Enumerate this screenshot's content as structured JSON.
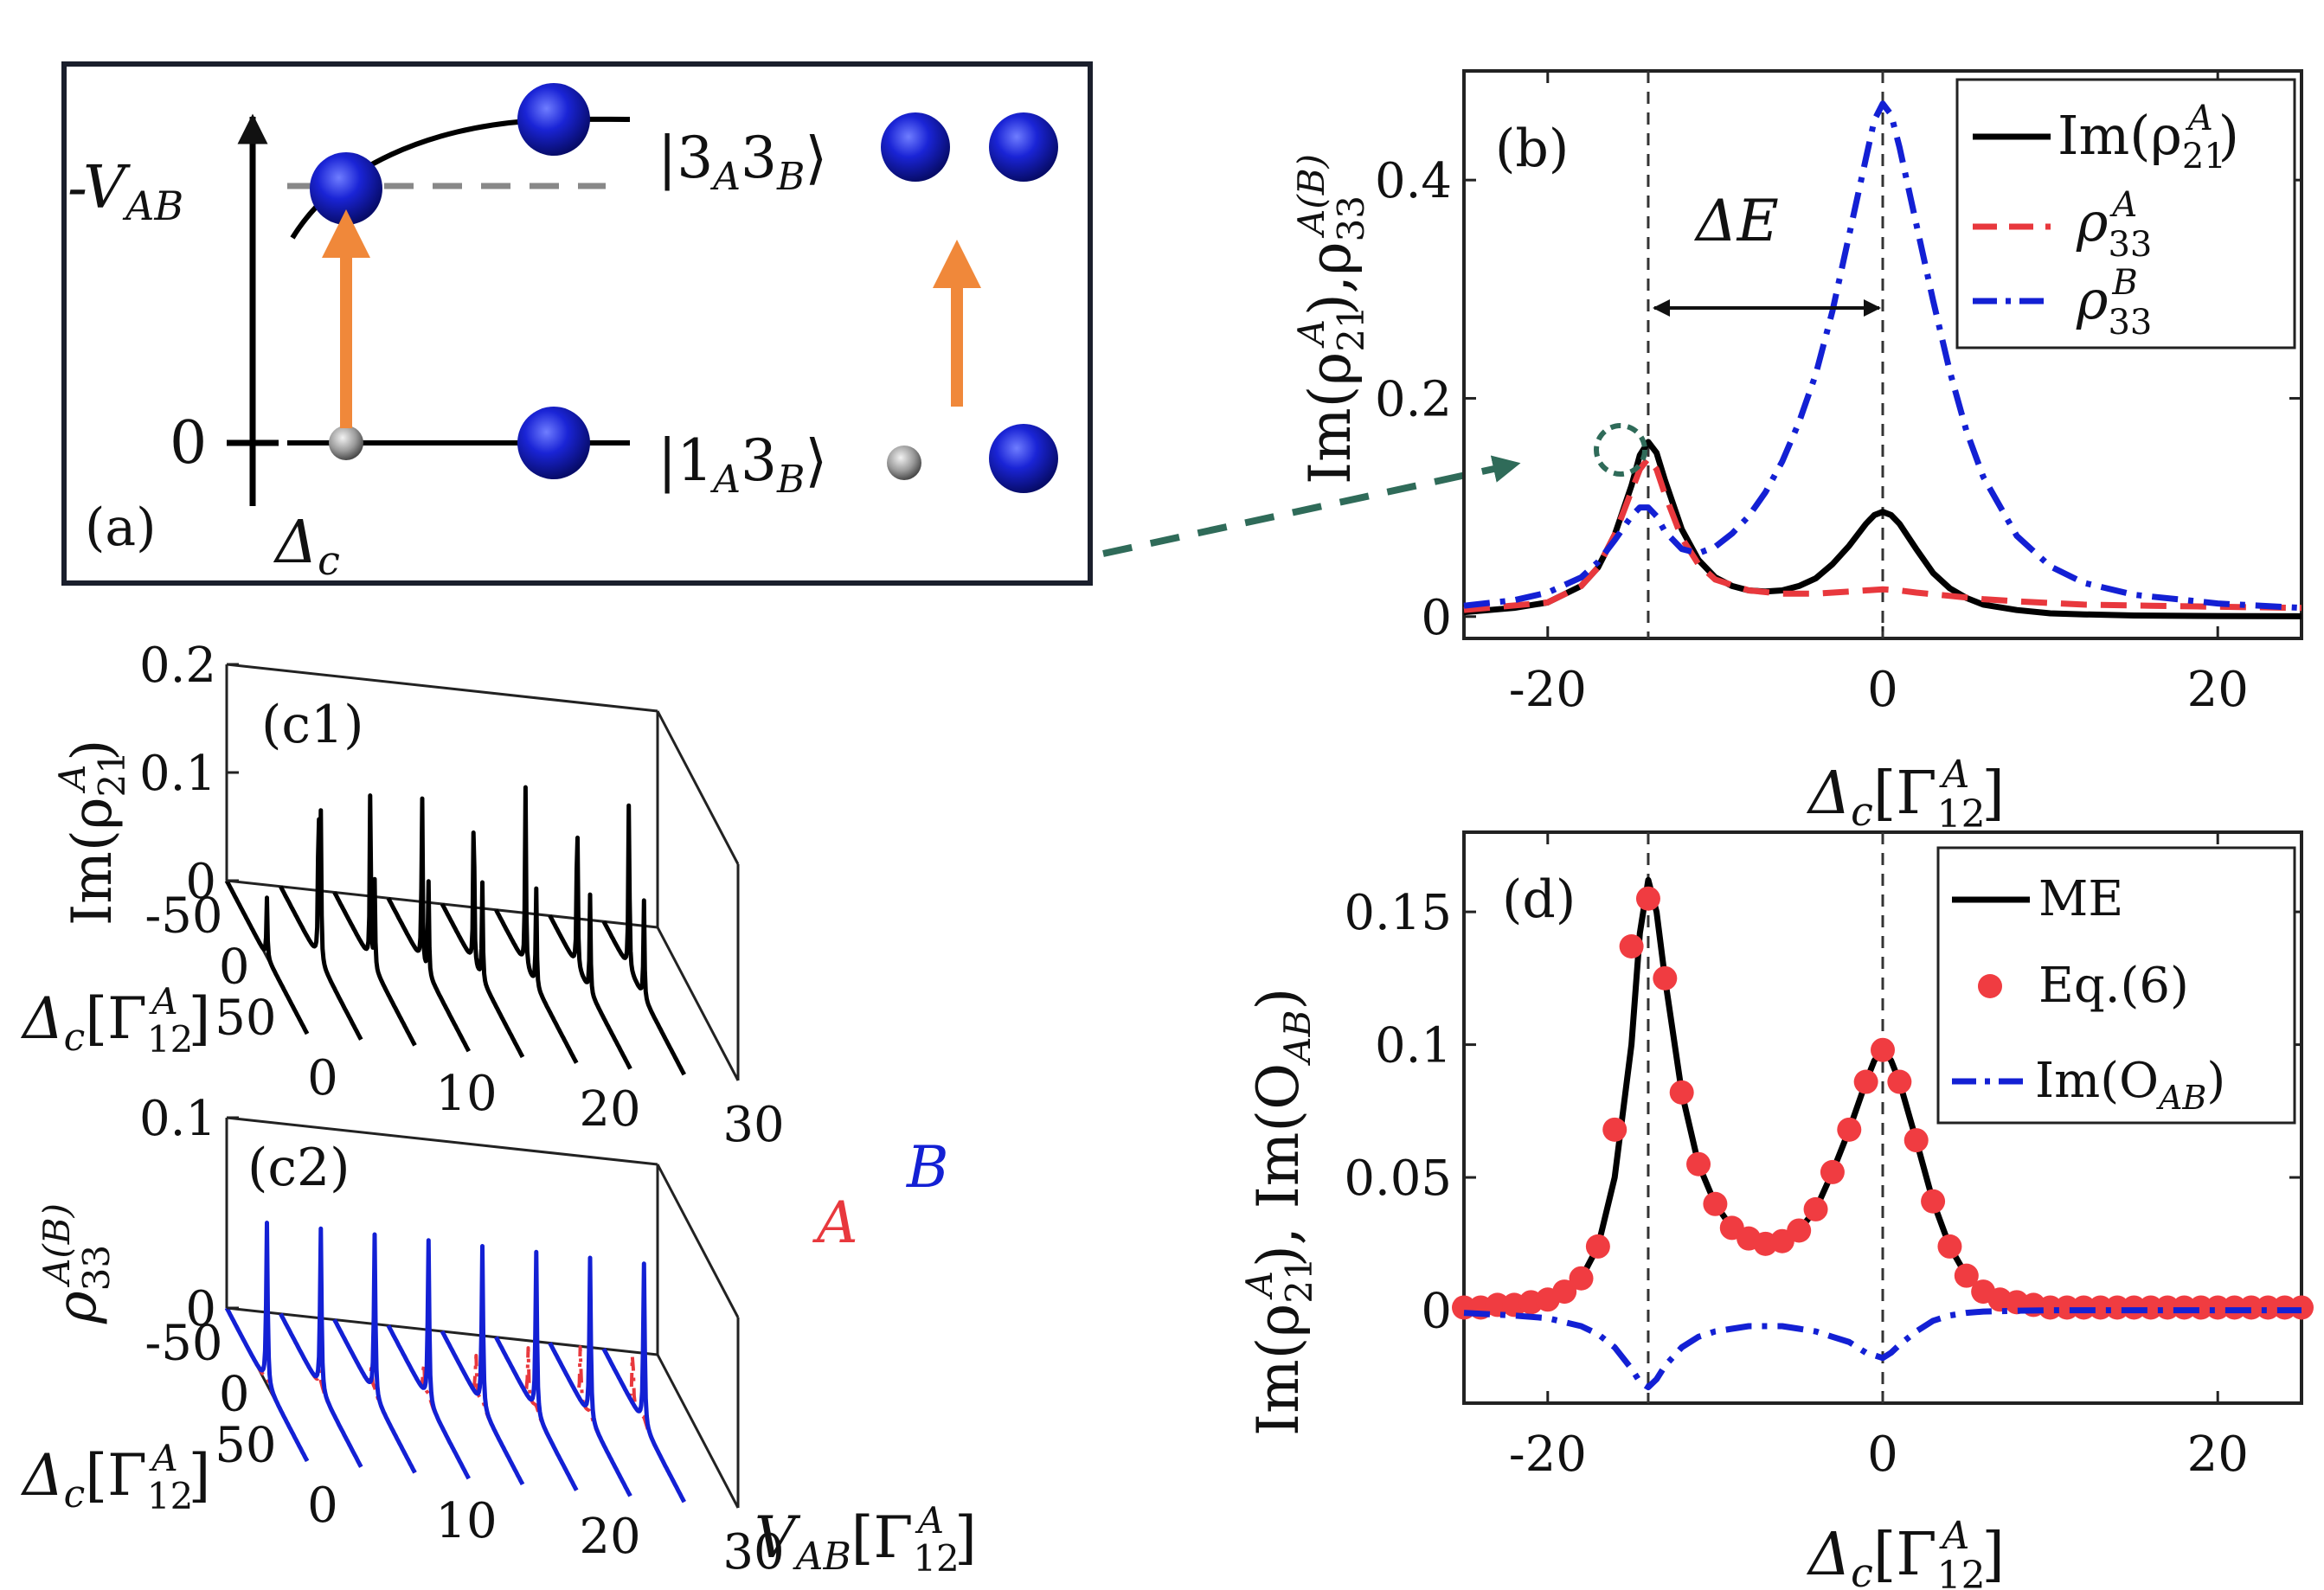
{
  "panel_labels": {
    "a": "(a)",
    "b": "(b)",
    "c1": "(c1)",
    "c2": "(c2)",
    "d": "(d)"
  },
  "panel_a": {
    "level_top": "-V",
    "level_top_sub": "AB",
    "level_bottom": "0",
    "axis_label": "Δ",
    "axis_label_sub": "c",
    "state_top": "|3",
    "state_top_sub1": "A",
    "state_top_mid": "3",
    "state_top_sub2": "B",
    "state_top_close": "⟩",
    "state_bottom": "|1",
    "state_bottom_sub1": "A",
    "state_bottom_mid": "3",
    "state_bottom_sub2": "B",
    "state_bottom_close": "⟩",
    "colors": {
      "atom_excited": "#1a24d6",
      "atom_ground": "#8a8a8a",
      "arrow": "#f0883a",
      "dash": "#888888"
    }
  },
  "labels_b": {
    "delta_e": "ΔE",
    "ylabel_main": "Im(ρ",
    "ylabel_sub": "21",
    "ylabel_sup": "A",
    "ylabel_rest": "),ρ",
    "ylabel_sub2": "33",
    "ylabel_sup2": "A(B)",
    "xlabel_main": "Δ",
    "xlabel_sub": "c",
    "xlabel_bracket": "[Γ",
    "xlabel_sub2": "12",
    "xlabel_sup2": "A",
    "xlabel_close": "]",
    "legend": [
      {
        "text": "Im(ρ",
        "sub": "21",
        "sup": "A",
        "close": ")"
      },
      {
        "text": "ρ",
        "sub": "33",
        "sup": "A",
        "close": ""
      },
      {
        "text": "ρ",
        "sub": "33",
        "sup": "B",
        "close": ""
      }
    ]
  },
  "labels_c1": {
    "zlabel_main": "Im(ρ",
    "zlabel_sub": "21",
    "zlabel_sup": "A",
    "zlabel_close": ")",
    "dlabel_main": "Δ",
    "dlabel_sub": "c",
    "dlabel_bracket": "[Γ",
    "dlabel_sub2": "12",
    "dlabel_sup2": "A",
    "dlabel_close": "]"
  },
  "labels_c2": {
    "zlabel_main": "ρ",
    "zlabel_sub": "33",
    "zlabel_sup": "A(B)",
    "tag_a": "A",
    "tag_b": "B",
    "dlabel_main": "Δ",
    "dlabel_sub": "c",
    "dlabel_bracket": "[Γ",
    "dlabel_sub2": "12",
    "dlabel_sup2": "A",
    "dlabel_close": "]",
    "vlabel_main": "V",
    "vlabel_sub": "AB",
    "vlabel_bracket": "[Γ",
    "vlabel_sub2": "12",
    "vlabel_sup2": "A",
    "vlabel_close": "]"
  },
  "labels_d": {
    "ylabel_main": "Im(ρ",
    "ylabel_sub": "21",
    "ylabel_sup": "A",
    "ylabel_rest": "), Im(O",
    "ylabel_sub2": "AB",
    "ylabel_close": ")",
    "xlabel_main": "Δ",
    "xlabel_sub": "c",
    "xlabel_bracket": "[Γ",
    "xlabel_sub2": "12",
    "xlabel_sup2": "A",
    "xlabel_close": "]",
    "legend": [
      {
        "text": "ME",
        "sub": "",
        "close": ""
      },
      {
        "text": "Eq.(6)",
        "sub": "",
        "close": ""
      },
      {
        "text": "Im(O",
        "sub": "AB",
        "close": ")"
      }
    ]
  },
  "chart_data": [
    {
      "id": "b",
      "type": "line",
      "xlim": [
        -25,
        25
      ],
      "ylim": [
        -0.02,
        0.5
      ],
      "xticks": [
        -20,
        0,
        20
      ],
      "xtick_labels": [
        "-20",
        "0",
        "20"
      ],
      "yticks": [
        0,
        0.2,
        0.4
      ],
      "ytick_labels": [
        "0",
        "0.2",
        "0.4"
      ],
      "vlines": [
        -14,
        0
      ],
      "series": [
        {
          "name": "Im(rho21A)",
          "color": "#000000",
          "dash": "solid",
          "x": [
            -25,
            -22,
            -20,
            -18,
            -17,
            -16,
            -15,
            -14.5,
            -14,
            -13.5,
            -13,
            -12,
            -11,
            -10,
            -9,
            -8,
            -7,
            -6,
            -5,
            -4,
            -3,
            -2,
            -1,
            -0.5,
            0,
            0.5,
            1,
            2,
            3,
            4,
            5,
            6,
            8,
            10,
            12,
            15,
            20,
            25
          ],
          "y": [
            0.004,
            0.008,
            0.013,
            0.028,
            0.045,
            0.075,
            0.12,
            0.148,
            0.16,
            0.15,
            0.125,
            0.08,
            0.052,
            0.036,
            0.028,
            0.024,
            0.023,
            0.024,
            0.028,
            0.035,
            0.048,
            0.065,
            0.085,
            0.093,
            0.096,
            0.093,
            0.085,
            0.062,
            0.04,
            0.026,
            0.017,
            0.011,
            0.006,
            0.003,
            0.002,
            0.001,
            0.0005,
            0.0003
          ]
        },
        {
          "name": "rho33A",
          "color": "#e8383d",
          "dash": "dash",
          "x": [
            -25,
            -20,
            -18,
            -17,
            -16,
            -15,
            -14.5,
            -14,
            -13.5,
            -13,
            -12,
            -11,
            -10,
            -8,
            -6,
            -4,
            -2,
            -1,
            0,
            1,
            2,
            4,
            6,
            8,
            12,
            16,
            20,
            25
          ],
          "y": [
            0.006,
            0.013,
            0.028,
            0.045,
            0.075,
            0.115,
            0.135,
            0.145,
            0.135,
            0.112,
            0.072,
            0.048,
            0.034,
            0.024,
            0.021,
            0.021,
            0.023,
            0.024,
            0.025,
            0.024,
            0.022,
            0.019,
            0.016,
            0.014,
            0.011,
            0.01,
            0.009,
            0.008
          ]
        },
        {
          "name": "rho33B",
          "color": "#1320d4",
          "dash": "dashdot",
          "x": [
            -25,
            -22,
            -20,
            -18,
            -17,
            -16,
            -15,
            -14.5,
            -14,
            -13.5,
            -13,
            -12,
            -11,
            -10,
            -9,
            -8,
            -7,
            -6,
            -5,
            -4,
            -3,
            -2,
            -1,
            -0.5,
            0,
            0.5,
            1,
            2,
            3,
            4,
            5,
            6,
            8,
            10,
            12,
            15,
            20,
            25
          ],
          "y": [
            0.01,
            0.015,
            0.022,
            0.036,
            0.05,
            0.07,
            0.092,
            0.1,
            0.1,
            0.092,
            0.078,
            0.062,
            0.058,
            0.064,
            0.076,
            0.092,
            0.114,
            0.142,
            0.178,
            0.222,
            0.28,
            0.35,
            0.42,
            0.455,
            0.47,
            0.46,
            0.43,
            0.36,
            0.29,
            0.225,
            0.17,
            0.128,
            0.074,
            0.046,
            0.031,
            0.02,
            0.012,
            0.008
          ]
        }
      ]
    },
    {
      "id": "d",
      "type": "line",
      "xlim": [
        -25,
        25
      ],
      "ylim": [
        -0.035,
        0.18
      ],
      "xticks": [
        -20,
        0,
        20
      ],
      "xtick_labels": [
        "-20",
        "0",
        "20"
      ],
      "yticks": [
        0,
        0.05,
        0.1,
        0.15
      ],
      "ytick_labels": [
        "0",
        "0.05",
        "0.1",
        "0.15"
      ],
      "vlines": [
        -14,
        0
      ],
      "series": [
        {
          "name": "ME",
          "color": "#000000",
          "dash": "solid",
          "x": [
            -25,
            -22,
            -20,
            -18,
            -17,
            -16,
            -15,
            -14.5,
            -14,
            -13.5,
            -13,
            -12,
            -11,
            -10,
            -9,
            -8,
            -7,
            -6,
            -5,
            -4,
            -3,
            -2,
            -1,
            -0.5,
            0,
            0.5,
            1,
            2,
            3,
            4,
            5,
            6,
            8,
            10,
            12,
            15,
            20,
            25
          ],
          "y": [
            0.001,
            0.002,
            0.004,
            0.012,
            0.024,
            0.05,
            0.1,
            0.142,
            0.162,
            0.15,
            0.125,
            0.082,
            0.055,
            0.04,
            0.031,
            0.027,
            0.025,
            0.026,
            0.03,
            0.038,
            0.052,
            0.068,
            0.086,
            0.094,
            0.098,
            0.094,
            0.086,
            0.064,
            0.041,
            0.024,
            0.013,
            0.007,
            0.003,
            0.001,
            0.0005,
            0.0002,
            0.0001,
            0.0001
          ]
        },
        {
          "name": "Eq.(6)",
          "color": "#f03c41",
          "dash": "markers",
          "x": [
            -25,
            -24,
            -23,
            -22,
            -21,
            -20,
            -19,
            -18,
            -17,
            -16,
            -15,
            -14,
            -13,
            -12,
            -11,
            -10,
            -9,
            -8,
            -7,
            -6,
            -5,
            -4,
            -3,
            -2,
            -1,
            0,
            1,
            2,
            3,
            4,
            5,
            6,
            7,
            8,
            9,
            10,
            11,
            12,
            13,
            14,
            15,
            16,
            17,
            18,
            19,
            20,
            21,
            22,
            23,
            24,
            25
          ],
          "y": [
            0.001,
            0.001,
            0.002,
            0.002,
            0.003,
            0.004,
            0.007,
            0.012,
            0.024,
            0.068,
            0.137,
            0.155,
            0.125,
            0.082,
            0.055,
            0.04,
            0.031,
            0.027,
            0.025,
            0.026,
            0.03,
            0.038,
            0.052,
            0.068,
            0.086,
            0.098,
            0.086,
            0.064,
            0.041,
            0.024,
            0.013,
            0.007,
            0.004,
            0.003,
            0.002,
            0.001,
            0.001,
            0.001,
            0.001,
            0.001,
            0.001,
            0.001,
            0.001,
            0.001,
            0.001,
            0.001,
            0.001,
            0.001,
            0.001,
            0.001,
            0.001
          ]
        },
        {
          "name": "Im(O_AB)",
          "color": "#1320d4",
          "dash": "dashdot",
          "x": [
            -25,
            -22,
            -20,
            -18,
            -17,
            -16,
            -15,
            -14.5,
            -14,
            -13.5,
            -13,
            -12,
            -11,
            -10,
            -9,
            -8,
            -7,
            -6,
            -5,
            -4,
            -3,
            -2,
            -1,
            -0.5,
            0,
            0.5,
            1,
            2,
            3,
            4,
            5,
            6,
            8,
            10,
            12,
            15,
            20,
            25
          ],
          "y": [
            -0.001,
            -0.002,
            -0.003,
            -0.006,
            -0.009,
            -0.014,
            -0.022,
            -0.027,
            -0.029,
            -0.026,
            -0.021,
            -0.014,
            -0.01,
            -0.008,
            -0.007,
            -0.006,
            -0.006,
            -0.006,
            -0.007,
            -0.008,
            -0.01,
            -0.012,
            -0.016,
            -0.017,
            -0.018,
            -0.016,
            -0.013,
            -0.008,
            -0.004,
            -0.002,
            -0.001,
            -0.0005,
            -0.0002,
            0,
            0,
            0,
            0,
            0
          ]
        }
      ]
    },
    {
      "id": "c1",
      "type": "line",
      "x_label_axis": "V_AB",
      "v_values": [
        0,
        3.75,
        7.5,
        11.25,
        15,
        18.75,
        22.5,
        26.25
      ],
      "v_ticks": [
        0,
        10,
        20,
        30
      ],
      "v_tick_labels": [
        "0",
        "10",
        "20",
        "30"
      ],
      "delta_ticks": [
        -50,
        0,
        50
      ],
      "delta_tick_labels": [
        "-50",
        "0",
        "50"
      ],
      "delta_range": [
        -75,
        75
      ],
      "z_ticks": [
        0,
        0.1,
        0.2
      ],
      "z_tick_labels": [
        "0",
        "0.1",
        "0.2"
      ],
      "z_range": [
        0,
        0.2
      ],
      "gamma_peaks": [
        [
          [
            0,
            0.055
          ]
        ],
        [
          [
            -4,
            0.16
          ],
          [
            0,
            0.13
          ]
        ],
        [
          [
            -8,
            0.165
          ],
          [
            0,
            0.08
          ]
        ],
        [
          [
            -12,
            0.165
          ],
          [
            0,
            0.085
          ]
        ],
        [
          [
            -16,
            0.165
          ],
          [
            0,
            0.09
          ]
        ],
        [
          [
            -20,
            0.165
          ],
          [
            0,
            0.09
          ]
        ],
        [
          [
            -24,
            0.165
          ],
          [
            0,
            0.09
          ]
        ],
        [
          [
            -28,
            0.165
          ],
          [
            0,
            0.09
          ]
        ]
      ],
      "color": "#000000"
    },
    {
      "id": "c2",
      "type": "line",
      "v_values": [
        0,
        3.75,
        7.5,
        11.25,
        15,
        18.75,
        22.5,
        26.25
      ],
      "v_ticks": [
        0,
        10,
        20,
        30
      ],
      "v_tick_labels": [
        "0",
        "10",
        "20",
        "30"
      ],
      "delta_ticks": [
        -50,
        0,
        50
      ],
      "delta_tick_labels": [
        "-50",
        "0",
        "50"
      ],
      "delta_range": [
        -75,
        75
      ],
      "z_ticks": [
        0,
        0.1
      ],
      "z_tick_labels": [
        "0",
        "0.1"
      ],
      "z_range": [
        0,
        0.1
      ],
      "b_peak": 0.085,
      "a_peak": [
        0,
        0.006,
        0.012,
        0.018,
        0.022,
        0.026,
        0.03,
        0.032
      ],
      "colors": {
        "A": "#e8383d",
        "B": "#1320d4"
      }
    }
  ]
}
